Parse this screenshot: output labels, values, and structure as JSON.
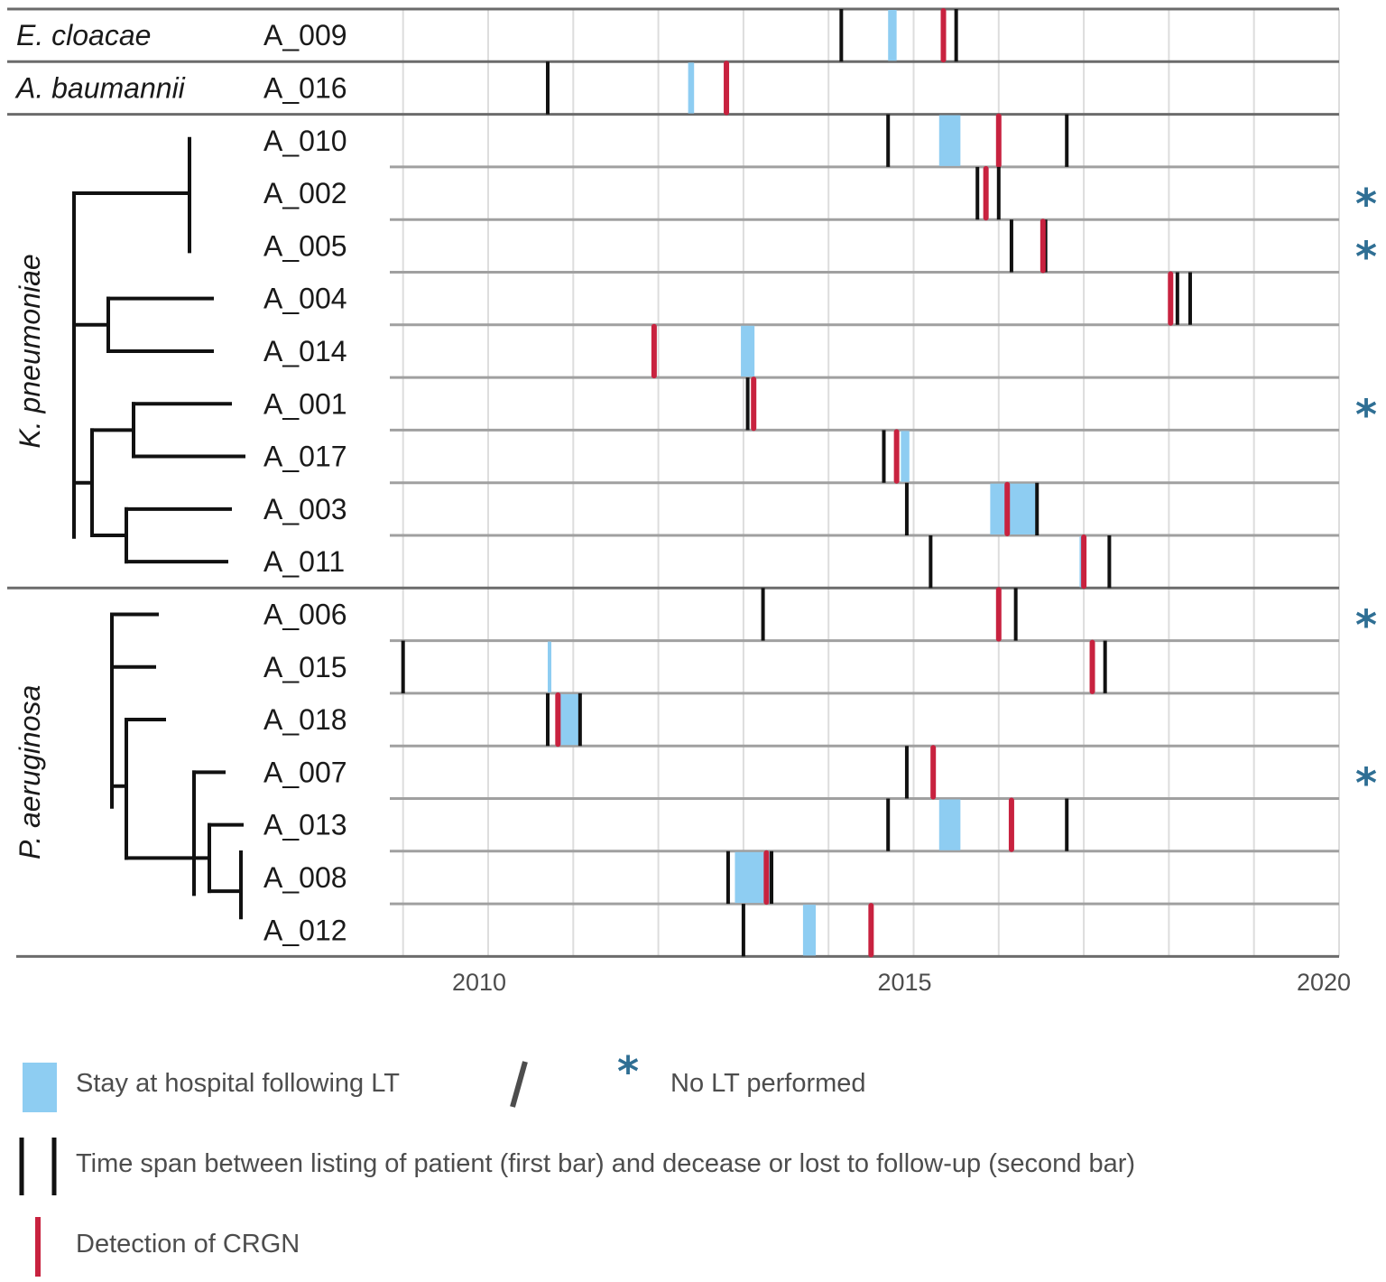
{
  "chart_data": {
    "type": "timeline",
    "title": "",
    "xlabel": "",
    "ylabel": "",
    "xlim": [
      2009,
      2020
    ],
    "x_ticks": [
      2010,
      2015,
      2020
    ],
    "x_tick_labels": [
      "2010",
      "2015",
      "2020"
    ],
    "grid": true,
    "colors": {
      "stay": "#8ecdf2",
      "listing": "#111111",
      "crgn": "#c8223f",
      "grid": "#dddddd",
      "row_line": "#a0a0a0",
      "group_line": "#6b6b6b"
    },
    "groups": [
      {
        "species": "E. cloacae",
        "tree": false,
        "patients": [
          "A_009"
        ]
      },
      {
        "species": "A. baumannii",
        "tree": false,
        "patients": [
          "A_016"
        ]
      },
      {
        "species": "K. pneumoniae",
        "tree": true,
        "patients": [
          "A_010",
          "A_002",
          "A_005",
          "A_004",
          "A_014",
          "A_001",
          "A_017",
          "A_003",
          "A_011"
        ]
      },
      {
        "species": "P. aeruginosa",
        "tree": true,
        "patients": [
          "A_006",
          "A_015",
          "A_018",
          "A_007",
          "A_013",
          "A_008",
          "A_012"
        ]
      }
    ],
    "rows": [
      {
        "id": "A_009",
        "listing": [
          2014.15,
          2015.5
        ],
        "stay": [
          2014.7,
          2014.8
        ],
        "crgn": [
          2015.35
        ],
        "no_lt": false
      },
      {
        "id": "A_016",
        "listing": [
          2010.7
        ],
        "stay": [
          2012.35,
          2012.42
        ],
        "crgn": [
          2012.8
        ],
        "no_lt": false
      },
      {
        "id": "A_010",
        "listing": [
          2014.7,
          2016.8
        ],
        "stay": [
          2015.3,
          2015.55
        ],
        "crgn": [
          2016.0
        ],
        "no_lt": false
      },
      {
        "id": "A_002",
        "listing": [
          2015.75,
          2016.0
        ],
        "stay": null,
        "crgn": [
          2015.85
        ],
        "no_lt": true
      },
      {
        "id": "A_005",
        "listing": [
          2016.15,
          2016.55
        ],
        "stay": null,
        "crgn": [
          2016.52
        ],
        "no_lt": true
      },
      {
        "id": "A_004",
        "listing": [
          2018.1,
          2018.25
        ],
        "stay": null,
        "crgn": [
          2018.02
        ],
        "no_lt": false
      },
      {
        "id": "A_014",
        "listing": [],
        "stay": [
          2012.97,
          2013.13
        ],
        "crgn": [
          2011.95
        ],
        "no_lt": false
      },
      {
        "id": "A_001",
        "listing": [
          2013.05
        ],
        "stay": null,
        "crgn": [
          2013.12
        ],
        "no_lt": true
      },
      {
        "id": "A_017",
        "listing": [
          2014.65
        ],
        "stay": [
          2014.85,
          2014.95
        ],
        "crgn": [
          2014.8
        ],
        "no_lt": false
      },
      {
        "id": "A_003",
        "listing": [
          2014.92,
          2016.45
        ],
        "stay": [
          2015.9,
          2016.45
        ],
        "crgn": [
          2016.1
        ],
        "no_lt": false
      },
      {
        "id": "A_011",
        "listing": [
          2015.2,
          2017.3
        ],
        "stay": [
          2016.95,
          2017.0
        ],
        "crgn": [
          2017.0
        ],
        "no_lt": false
      },
      {
        "id": "A_006",
        "listing": [
          2013.23,
          2016.2
        ],
        "stay": null,
        "crgn": [
          2016.0
        ],
        "no_lt": true
      },
      {
        "id": "A_015",
        "listing": [
          2009.0,
          2017.25
        ],
        "stay": [
          2010.7,
          2010.72
        ],
        "crgn": [
          2017.1
        ],
        "no_lt": false
      },
      {
        "id": "A_018",
        "listing": [
          2010.7,
          2011.08
        ],
        "stay": [
          2010.8,
          2011.08
        ],
        "crgn": [
          2010.82
        ],
        "no_lt": false
      },
      {
        "id": "A_007",
        "listing": [
          2014.92
        ],
        "stay": null,
        "crgn": [
          2015.23
        ],
        "no_lt": true
      },
      {
        "id": "A_013",
        "listing": [
          2014.7,
          2016.8
        ],
        "stay": [
          2015.3,
          2015.55
        ],
        "crgn": [
          2016.15
        ],
        "no_lt": false
      },
      {
        "id": "A_008",
        "listing": [
          2012.82,
          2013.33
        ],
        "stay": [
          2012.9,
          2013.33
        ],
        "crgn": [
          2013.27
        ],
        "no_lt": false
      },
      {
        "id": "A_012",
        "listing": [
          2013.0
        ],
        "stay": [
          2013.7,
          2013.85
        ],
        "crgn": [
          2014.5
        ],
        "no_lt": false
      }
    ]
  },
  "legend": {
    "stay_label": "Stay at hospital following LT",
    "no_lt_label": "No LT performed",
    "listing_label": "Time span between listing of patient (first bar) and decease or lost to follow-up (second bar)",
    "crgn_label": "Detection of CRGN",
    "no_lt_symbol": "*"
  }
}
